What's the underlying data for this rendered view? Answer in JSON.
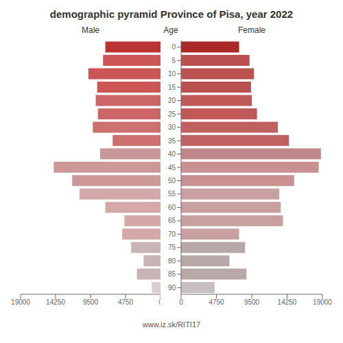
{
  "chart_data": [
    {
      "type": "bar",
      "orientation": "horizontal",
      "title": "demographic pyramid Province of Pisa, year 2022",
      "xlabel": "Male",
      "categories": [
        "0",
        "5",
        "10",
        "15",
        "20",
        "25",
        "30",
        "35",
        "40",
        "45",
        "50",
        "55",
        "60",
        "65",
        "70",
        "75",
        "80",
        "85",
        "90"
      ],
      "values": [
        7500,
        7800,
        9800,
        8600,
        8800,
        8500,
        9200,
        6500,
        8200,
        14500,
        12000,
        11000,
        7500,
        4900,
        5200,
        4000,
        2300,
        3200,
        1200
      ],
      "colors": [
        "#bb3333",
        "#cc5555",
        "#cc5555",
        "#cc5555",
        "#cc6666",
        "#cc6666",
        "#cd7070",
        "#cd7070",
        "#c89898",
        "#cc9898",
        "#cc9898",
        "#d4a8a8",
        "#d4a8a8",
        "#d4a8a8",
        "#d4a8a8",
        "#c8b4b4",
        "#c8b4b4",
        "#c8b4b4",
        "#d8d0d0"
      ],
      "xlim": [
        19000,
        0
      ],
      "xticks": [
        0,
        4750,
        9500,
        14250,
        19000
      ],
      "grid": false,
      "tick_labels": "x",
      "annotations": [
        "Age",
        "www.iz.sk/RITI17"
      ]
    },
    {
      "type": "bar",
      "orientation": "horizontal",
      "xlabel": "Female",
      "categories": [
        "0",
        "5",
        "10",
        "15",
        "20",
        "25",
        "30",
        "35",
        "40",
        "45",
        "50",
        "55",
        "60",
        "65",
        "70",
        "75",
        "80",
        "85",
        "90"
      ],
      "values": [
        7800,
        9200,
        9800,
        9400,
        9500,
        10200,
        13000,
        14500,
        18800,
        18500,
        15200,
        13200,
        13400,
        13700,
        7800,
        8600,
        6500,
        8800,
        4500
      ],
      "colors": [
        "#aa2828",
        "#bb5050",
        "#bb5050",
        "#bb5050",
        "#c05858",
        "#c05858",
        "#c06060",
        "#c06060",
        "#c08888",
        "#c89090",
        "#c89090",
        "#c8a0a0",
        "#c8a0a0",
        "#c8a0a0",
        "#c8a0a0",
        "#b8a8a8",
        "#b8a8a8",
        "#b8a8a8",
        "#c8c0c0"
      ],
      "xlim": [
        0,
        19000
      ],
      "xticks": [
        0,
        4750,
        9500,
        14250,
        19000
      ],
      "grid": false
    }
  ]
}
